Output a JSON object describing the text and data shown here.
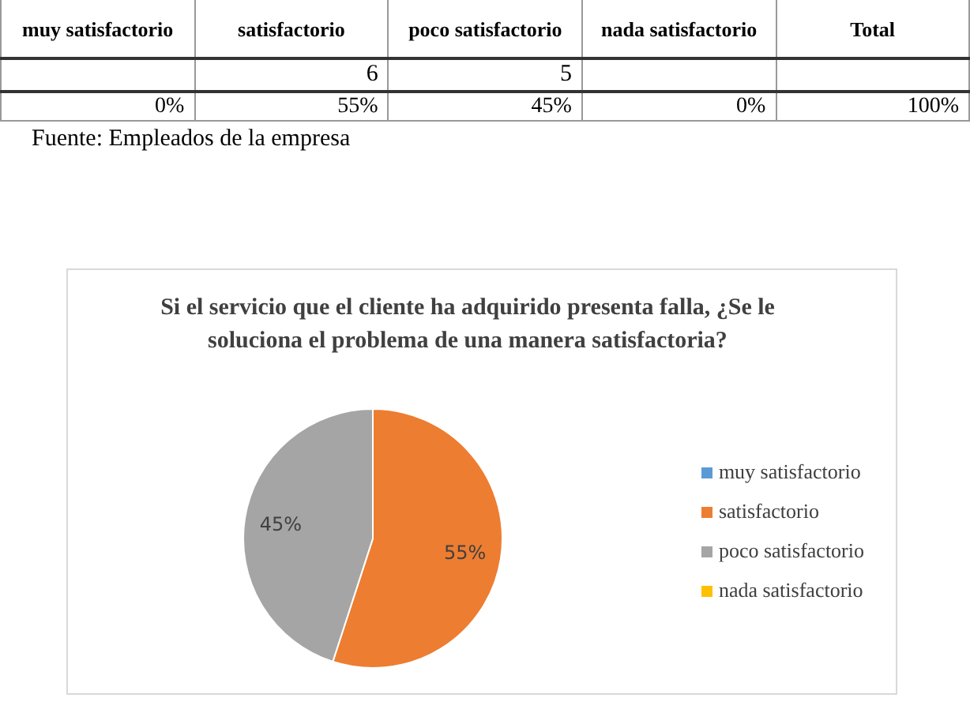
{
  "chart_data": {
    "type": "pie",
    "title": "Si el servicio que el cliente ha adquirido presenta falla, ¿Se le soluciona el problema de una manera satisfactoria?",
    "categories": [
      "muy satisfactorio",
      "satisfactorio",
      "poco satisfactorio",
      "nada satisfactorio"
    ],
    "values": [
      0,
      55,
      45,
      0
    ],
    "colors": [
      "#5b9bd5",
      "#ed7d31",
      "#a5a5a5",
      "#ffc000"
    ],
    "value_labels": [
      null,
      "55%",
      "45%",
      null
    ],
    "legend": "right",
    "annotations": [
      "Total",
      "6",
      "5",
      "0%",
      "55%",
      "45%",
      "0%",
      "100%",
      "Fuente: Empleados de la empresa"
    ]
  }
}
